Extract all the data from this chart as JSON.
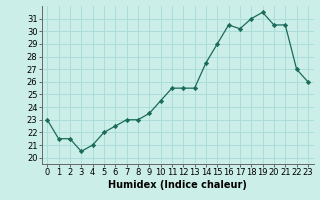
{
  "x": [
    0,
    1,
    2,
    3,
    4,
    5,
    6,
    7,
    8,
    9,
    10,
    11,
    12,
    13,
    14,
    15,
    16,
    17,
    18,
    19,
    20,
    21,
    22,
    23
  ],
  "y": [
    23,
    21.5,
    21.5,
    20.5,
    21,
    22,
    22.5,
    23,
    23,
    23.5,
    24.5,
    25.5,
    25.5,
    25.5,
    27.5,
    29,
    30.5,
    30.2,
    31,
    31.5,
    30.5,
    30.5,
    27,
    26
  ],
  "xlabel": "Humidex (Indice chaleur)",
  "ylim": [
    19.5,
    32
  ],
  "xlim": [
    -0.5,
    23.5
  ],
  "yticks": [
    20,
    21,
    22,
    23,
    24,
    25,
    26,
    27,
    28,
    29,
    30,
    31
  ],
  "xticks": [
    0,
    1,
    2,
    3,
    4,
    5,
    6,
    7,
    8,
    9,
    10,
    11,
    12,
    13,
    14,
    15,
    16,
    17,
    18,
    19,
    20,
    21,
    22,
    23
  ],
  "line_color": "#1a6b5a",
  "marker": "D",
  "marker_size": 2.2,
  "background_color": "#cceee8",
  "grid_color": "#aaddda",
  "label_fontsize": 7,
  "tick_fontsize": 6
}
